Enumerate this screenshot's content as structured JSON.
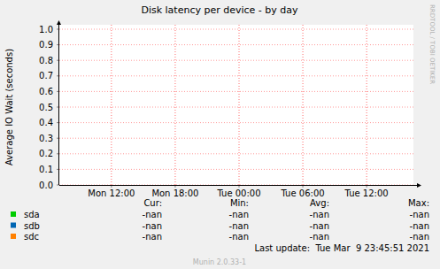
{
  "chart_data": {
    "type": "line",
    "title": "Disk latency per device - by day",
    "y_label": "Average IO Wait (seconds)",
    "x": [],
    "xlim": [
      7.1,
      40.4
    ],
    "xticks": [
      {
        "value": 12,
        "label": "Mon 12:00"
      },
      {
        "value": 18,
        "label": "Mon 18:00"
      },
      {
        "value": 24,
        "label": "Tue 00:00"
      },
      {
        "value": 30,
        "label": "Tue 06:00"
      },
      {
        "value": 36,
        "label": "Tue 12:00"
      }
    ],
    "ylim": [
      0,
      1
    ],
    "yticks": [
      {
        "value": 0,
        "label": "0.0"
      },
      0.1,
      0.2,
      0.3,
      0.4,
      0.5,
      0.6,
      0.7,
      0.8,
      0.9,
      {
        "value": 1,
        "label": "1.0"
      }
    ],
    "grid": true,
    "legend": "bottom",
    "legend_columns": [
      "Cur:",
      "Min:",
      "Avg:",
      "Max:"
    ],
    "series": [
      {
        "name": "sda",
        "color": "#00cc00",
        "values": [],
        "stats": [
          "-nan",
          "-nan",
          "-nan",
          "-nan"
        ]
      },
      {
        "name": "sdb",
        "color": "#0066b3",
        "values": [],
        "stats": [
          "-nan",
          "-nan",
          "-nan",
          "-nan"
        ]
      },
      {
        "name": "sdc",
        "color": "#ff8000",
        "values": [],
        "stats": [
          "-nan",
          "-nan",
          "-nan",
          "-nan"
        ]
      }
    ],
    "last_update": "Last update:  Tue Mar  9 23:45:51 2021",
    "footer": "Munin 2.0.33-1",
    "watermark": "RRDTOOL / TOBI OETIKER"
  }
}
